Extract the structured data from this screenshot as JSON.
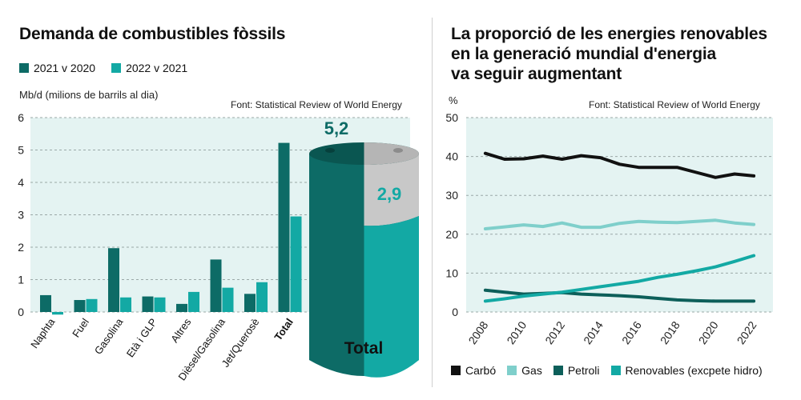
{
  "colors": {
    "dark_teal": "#0d6b66",
    "light_teal": "#13a9a4",
    "plot_bg": "#e4f3f2",
    "barrel_lid": "#c8c8c8",
    "grid": "#9aa8a7",
    "carbo": "#111111",
    "gas": "#7fcfcb",
    "petroli": "#0d5f5a",
    "renovables": "#13a9a4"
  },
  "left": {
    "title": "Demanda de combustibles fòssils",
    "legend": [
      {
        "label": "2021 v 2020",
        "color": "#0d6b66"
      },
      {
        "label": "2022 v 2021",
        "color": "#13a9a4"
      }
    ],
    "unit_label": "Mb/d (milions de barrils al dia)",
    "source": "Font: Statistical Review of World Energy",
    "barrel_total_label": "Total",
    "barrel_value_2021": "5,2",
    "barrel_value_2022": "2,9"
  },
  "right": {
    "title_lines": [
      "La proporció de les energies renovables",
      "en la generació mundial d'energia",
      "va seguir augmentant"
    ],
    "unit_label": "%",
    "source": "Font: Statistical Review of World Energy",
    "legend": [
      {
        "label": "Carbó",
        "color": "#111111"
      },
      {
        "label": "Gas",
        "color": "#7fcfcb"
      },
      {
        "label": "Petroli",
        "color": "#0d5f5a"
      },
      {
        "label": "Renovables (excpete hidro)",
        "color": "#13a9a4"
      }
    ]
  },
  "chart_data": [
    {
      "type": "bar",
      "title": "Demanda de combustibles fòssils",
      "ylabel": "Mb/d (milions de barrils al dia)",
      "ylim": [
        0,
        6
      ],
      "yticks": [
        0,
        1,
        2,
        3,
        4,
        5,
        6
      ],
      "categories": [
        "Naphta",
        "Fuel",
        "Gasolina",
        "Età i GLP",
        "Altres",
        "Dièsel/Gasolina",
        "Jet/Querosè",
        "Total"
      ],
      "series": [
        {
          "name": "2021 v 2020",
          "values": [
            0.52,
            0.37,
            1.97,
            0.48,
            0.25,
            1.62,
            0.56,
            5.22
          ]
        },
        {
          "name": "2022 v 2021",
          "values": [
            -0.08,
            0.4,
            0.45,
            0.45,
            0.62,
            0.75,
            0.92,
            2.95
          ]
        }
      ],
      "grid": true,
      "legend_position": "top-left"
    },
    {
      "type": "line",
      "title": "La proporció de les energies renovables en la generació mundial d'energia va seguir augmentant",
      "ylabel": "%",
      "ylim": [
        0,
        50
      ],
      "yticks": [
        0,
        10,
        20,
        30,
        40,
        50
      ],
      "xticks": [
        2008,
        2010,
        2012,
        2014,
        2016,
        2018,
        2020,
        2022
      ],
      "x": [
        2008,
        2009,
        2010,
        2011,
        2012,
        2013,
        2014,
        2015,
        2016,
        2017,
        2018,
        2019,
        2020,
        2021,
        2022
      ],
      "series": [
        {
          "name": "Carbó",
          "values": [
            40.8,
            39.3,
            39.4,
            40.1,
            39.3,
            40.2,
            39.7,
            38.0,
            37.2,
            37.2,
            37.2,
            35.9,
            34.6,
            35.5,
            35.0
          ]
        },
        {
          "name": "Gas",
          "values": [
            21.4,
            21.9,
            22.4,
            22.0,
            22.9,
            21.8,
            21.8,
            22.8,
            23.3,
            23.1,
            23.0,
            23.3,
            23.6,
            22.9,
            22.5
          ]
        },
        {
          "name": "Petroli",
          "values": [
            5.6,
            5.1,
            4.6,
            4.8,
            5.0,
            4.6,
            4.4,
            4.2,
            3.9,
            3.5,
            3.1,
            2.9,
            2.8,
            2.8,
            2.8
          ]
        },
        {
          "name": "Renovables (excpete hidro)",
          "values": [
            2.8,
            3.4,
            4.1,
            4.6,
            5.1,
            5.8,
            6.5,
            7.2,
            7.9,
            8.9,
            9.7,
            10.6,
            11.6,
            13.0,
            14.5
          ]
        }
      ],
      "grid": true,
      "legend_position": "bottom"
    }
  ]
}
